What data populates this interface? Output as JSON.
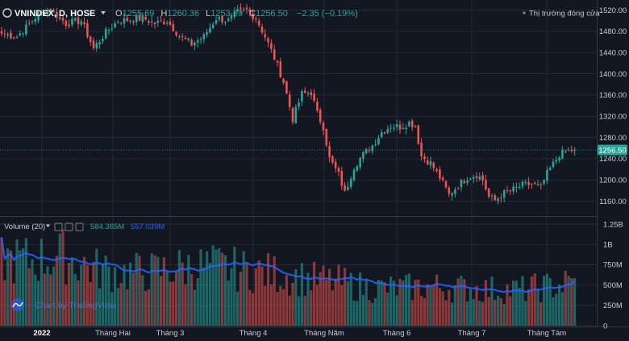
{
  "header": {
    "symbol": "VNINDEX, D, HOSE",
    "ohlc": [
      {
        "key": "O",
        "value": "1255.69"
      },
      {
        "key": "H",
        "value": "1260.36"
      },
      {
        "key": "L",
        "value": "1253.89"
      },
      {
        "key": "C",
        "value": "1256.50"
      }
    ],
    "change": "−2.35 (−0.19%)",
    "market_status": "Thị trường đóng cửa"
  },
  "volume_pane": {
    "label": "Volume (20)",
    "values": [
      {
        "value": "584.385M",
        "color": "#26a69a"
      },
      {
        "value": "557.039M",
        "color": "#2962ff"
      }
    ]
  },
  "branding": {
    "text": "Chart by TradingView"
  },
  "colors": {
    "up": "#26a69a",
    "down": "#ef5350",
    "volume_up": "#26a69a",
    "volume_down": "#ef5350",
    "volume_ma": "#2962ff",
    "last_price_line": "#26a69a",
    "background": "#131722",
    "grid": "#2a2e39"
  },
  "chart_data": [
    {
      "type": "candlestick",
      "title": "VNINDEX, D, HOSE",
      "xlabel": "",
      "ylabel": "",
      "ylim": [
        1135,
        1530
      ],
      "y_ticks": [
        1160,
        1200,
        1240,
        1280,
        1320,
        1360,
        1400,
        1440,
        1480,
        1520
      ],
      "y_tick_labels": [
        "1160.00",
        "1200.00",
        "1240.00",
        "1280.00",
        "1320.00",
        "1360.00",
        "1400.00",
        "1440.00",
        "1480.00",
        "1520.00"
      ],
      "x_tick_labels": [
        "2022",
        "Tháng Hai",
        "Tháng 3",
        "Tháng 4",
        "Tháng Năm",
        "Tháng 6",
        "Tháng 7",
        "Tháng Tám"
      ],
      "grid": true,
      "last_price": 1256.5,
      "last_price_label": "1256.50",
      "control_points": [
        {
          "i": 0,
          "price": 1476
        },
        {
          "i": 5,
          "price": 1470
        },
        {
          "i": 12,
          "price": 1512
        },
        {
          "i": 16,
          "price": 1522
        },
        {
          "i": 21,
          "price": 1495
        },
        {
          "i": 26,
          "price": 1500
        },
        {
          "i": 30,
          "price": 1448
        },
        {
          "i": 34,
          "price": 1478
        },
        {
          "i": 38,
          "price": 1500
        },
        {
          "i": 42,
          "price": 1502
        },
        {
          "i": 46,
          "price": 1505
        },
        {
          "i": 50,
          "price": 1495
        },
        {
          "i": 54,
          "price": 1500
        },
        {
          "i": 58,
          "price": 1472
        },
        {
          "i": 62,
          "price": 1456
        },
        {
          "i": 66,
          "price": 1470
        },
        {
          "i": 70,
          "price": 1505
        },
        {
          "i": 74,
          "price": 1500
        },
        {
          "i": 77,
          "price": 1516
        },
        {
          "i": 80,
          "price": 1520
        },
        {
          "i": 83,
          "price": 1505
        },
        {
          "i": 86,
          "price": 1470
        },
        {
          "i": 89,
          "price": 1430
        },
        {
          "i": 92,
          "price": 1385
        },
        {
          "i": 95,
          "price": 1315
        },
        {
          "i": 98,
          "price": 1362
        },
        {
          "i": 101,
          "price": 1365
        },
        {
          "i": 103,
          "price": 1325
        },
        {
          "i": 105,
          "price": 1300
        },
        {
          "i": 107,
          "price": 1240
        },
        {
          "i": 110,
          "price": 1210
        },
        {
          "i": 112,
          "price": 1175
        },
        {
          "i": 115,
          "price": 1225
        },
        {
          "i": 118,
          "price": 1248
        },
        {
          "i": 121,
          "price": 1265
        },
        {
          "i": 124,
          "price": 1290
        },
        {
          "i": 127,
          "price": 1302
        },
        {
          "i": 130,
          "price": 1300
        },
        {
          "i": 133,
          "price": 1308
        },
        {
          "i": 135,
          "price": 1302
        },
        {
          "i": 137,
          "price": 1245
        },
        {
          "i": 140,
          "price": 1232
        },
        {
          "i": 143,
          "price": 1205
        },
        {
          "i": 146,
          "price": 1172
        },
        {
          "i": 149,
          "price": 1190
        },
        {
          "i": 152,
          "price": 1205
        },
        {
          "i": 155,
          "price": 1210
        },
        {
          "i": 157,
          "price": 1200
        },
        {
          "i": 159,
          "price": 1168
        },
        {
          "i": 161,
          "price": 1162
        },
        {
          "i": 164,
          "price": 1175
        },
        {
          "i": 167,
          "price": 1182
        },
        {
          "i": 170,
          "price": 1190
        },
        {
          "i": 173,
          "price": 1192
        },
        {
          "i": 176,
          "price": 1186
        },
        {
          "i": 178,
          "price": 1212
        },
        {
          "i": 180,
          "price": 1230
        },
        {
          "i": 182,
          "price": 1248
        },
        {
          "i": 185,
          "price": 1255
        },
        {
          "i": 187,
          "price": 1256.5
        }
      ]
    },
    {
      "type": "bar",
      "title": "Volume (20)",
      "xlabel": "",
      "ylabel": "",
      "ylim": [
        0,
        1330000000
      ],
      "y_ticks": [
        0,
        250000000,
        500000000,
        750000000,
        1000000000,
        1250000000
      ],
      "y_tick_labels": [
        "0",
        "250M",
        "500M",
        "750M",
        "1B",
        "1.25B"
      ],
      "grid": true,
      "last_values": {
        "volume": 584385000,
        "ma20": 557039000
      },
      "volume_profile": [
        {
          "i": 0,
          "v": 880
        },
        {
          "i": 10,
          "v": 870
        },
        {
          "i": 20,
          "v": 930
        },
        {
          "i": 30,
          "v": 760
        },
        {
          "i": 40,
          "v": 700
        },
        {
          "i": 50,
          "v": 720
        },
        {
          "i": 60,
          "v": 780
        },
        {
          "i": 70,
          "v": 790
        },
        {
          "i": 80,
          "v": 730
        },
        {
          "i": 90,
          "v": 690
        },
        {
          "i": 100,
          "v": 620
        },
        {
          "i": 110,
          "v": 580
        },
        {
          "i": 120,
          "v": 500
        },
        {
          "i": 130,
          "v": 500
        },
        {
          "i": 140,
          "v": 520
        },
        {
          "i": 150,
          "v": 500
        },
        {
          "i": 160,
          "v": 480
        },
        {
          "i": 170,
          "v": 480
        },
        {
          "i": 180,
          "v": 530
        },
        {
          "i": 187,
          "v": 580
        }
      ]
    }
  ]
}
